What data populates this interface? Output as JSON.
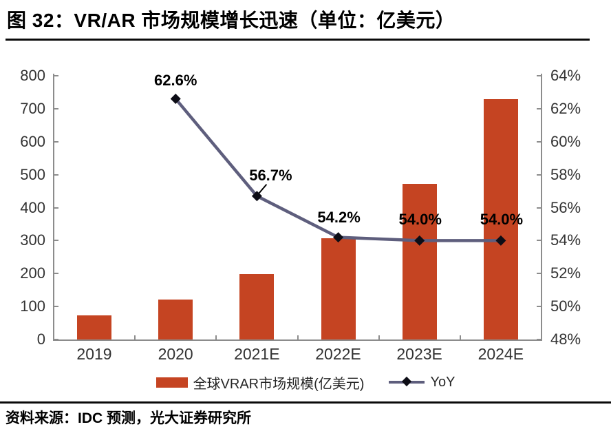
{
  "header": {
    "title": "图 32：VR/AR 市场规模增长迅速（单位：亿美元）"
  },
  "footer": {
    "source": "资料来源：IDC 预测，光大证券研究所"
  },
  "colors": {
    "bar": "#c54422",
    "line": "#5e5e7d",
    "marker": "#0d0d16",
    "axis": "#8c8c8c",
    "tick_text": "#333333",
    "data_label": "#000000",
    "rule": "#0a0a0a"
  },
  "chart_data": {
    "type": "bar",
    "title": "图 32：VR/AR 市场规模增长迅速（单位：亿美元）",
    "categories": [
      "2019",
      "2020",
      "2021E",
      "2022E",
      "2023E",
      "2024E"
    ],
    "series": [
      {
        "name": "全球VRAR市场规模(亿美元)",
        "type": "bar",
        "axis": "left",
        "values": [
          74,
          121,
          199,
          307,
          473,
          729
        ]
      },
      {
        "name": "YoY",
        "type": "line",
        "axis": "right",
        "values": [
          null,
          62.6,
          56.7,
          54.2,
          54.0,
          54.0
        ],
        "labels": [
          "",
          "62.6%",
          "56.7%",
          "54.2%",
          "54.0%",
          "54.0%"
        ]
      }
    ],
    "left_axis": {
      "min": 0,
      "max": 800,
      "step": 100,
      "ticks": [
        "0",
        "100",
        "200",
        "300",
        "400",
        "500",
        "600",
        "700",
        "800"
      ]
    },
    "right_axis": {
      "min": 48,
      "max": 64,
      "step": 2,
      "ticks": [
        "48%",
        "50%",
        "52%",
        "54%",
        "56%",
        "58%",
        "60%",
        "62%",
        "64%"
      ]
    },
    "legend_position": "bottom",
    "grid": false
  }
}
